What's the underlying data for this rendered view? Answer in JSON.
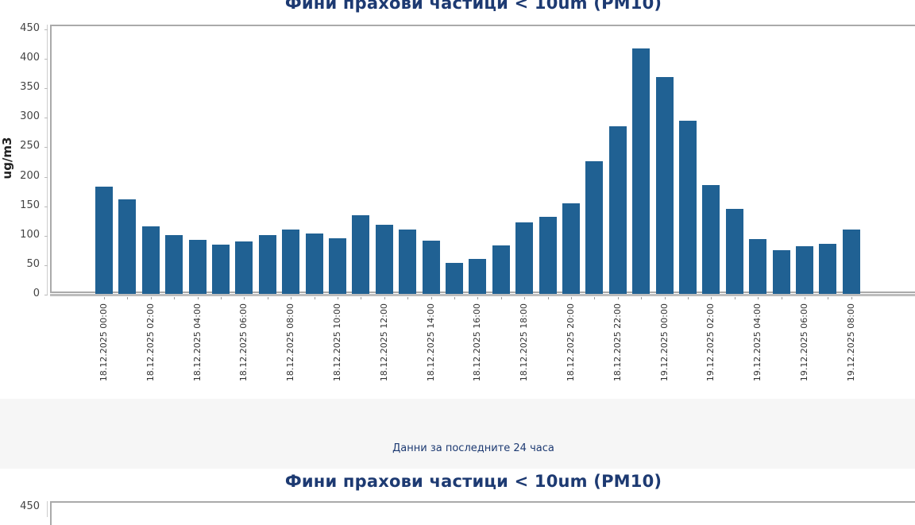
{
  "chart_data": {
    "type": "bar",
    "title": "Фини прахови частици < 10um (PM10)",
    "xlabel": "",
    "ylabel": "ug/m3",
    "ylim": [
      0,
      450
    ],
    "yticks": [
      0,
      50,
      100,
      150,
      200,
      250,
      300,
      350,
      400,
      450
    ],
    "grid": false,
    "legend": null,
    "bar_color": "#206193",
    "categories": [
      "18.12.2025 00:00",
      "18.12.2025 01:00",
      "18.12.2025 02:00",
      "18.12.2025 03:00",
      "18.12.2025 04:00",
      "18.12.2025 05:00",
      "18.12.2025 06:00",
      "18.12.2025 07:00",
      "18.12.2025 08:00",
      "18.12.2025 09:00",
      "18.12.2025 10:00",
      "18.12.2025 11:00",
      "18.12.2025 12:00",
      "18.12.2025 13:00",
      "18.12.2025 14:00",
      "18.12.2025 15:00",
      "18.12.2025 16:00",
      "18.12.2025 17:00",
      "18.12.2025 18:00",
      "18.12.2025 19:00",
      "18.12.2025 20:00",
      "18.12.2025 21:00",
      "18.12.2025 22:00",
      "18.12.2025 23:00",
      "19.12.2025 00:00",
      "19.12.2025 01:00",
      "19.12.2025 02:00",
      "19.12.2025 03:00",
      "19.12.2025 04:00",
      "19.12.2025 05:00",
      "19.12.2025 06:00",
      "19.12.2025 07:00",
      "19.12.2025 08:00"
    ],
    "values": [
      183,
      162,
      116,
      101,
      93,
      85,
      90,
      101,
      110,
      104,
      96,
      135,
      119,
      110,
      92,
      54,
      61,
      84,
      123,
      132,
      155,
      226,
      286,
      418,
      369,
      295,
      186,
      146,
      94,
      75,
      82,
      86,
      110
    ],
    "xtick_labels": [
      "18.12.2025 00:00",
      "18.12.2025 02:00",
      "18.12.2025 04:00",
      "18.12.2025 06:00",
      "18.12.2025 08:00",
      "18.12.2025 10:00",
      "18.12.2025 12:00",
      "18.12.2025 14:00",
      "18.12.2025 16:00",
      "18.12.2025 18:00",
      "18.12.2025 20:00",
      "18.12.2025 22:00",
      "19.12.2025 00:00",
      "19.12.2025 02:00",
      "19.12.2025 04:00",
      "19.12.2025 06:00",
      "19.12.2025 08:00"
    ]
  },
  "section": {
    "caption": "Данни за последните 24 часа"
  },
  "second_chart": {
    "title": "Фини прахови частици < 10um (PM10)",
    "top_tick": "450"
  },
  "colors": {
    "title": "#1d3a72",
    "bar": "#206193",
    "band": "#f6f6f6"
  }
}
